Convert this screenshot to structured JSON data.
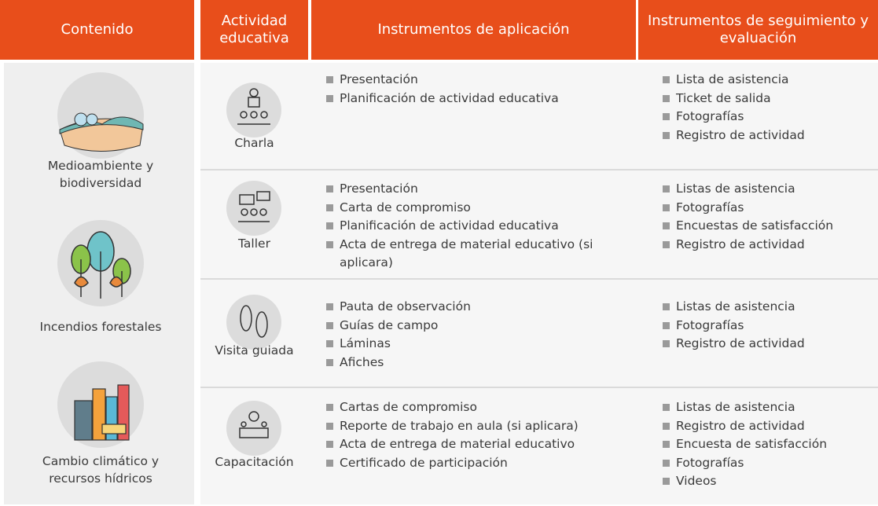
{
  "header": {
    "columns": [
      "Contenido",
      "Actividad educativa",
      "Instrumentos de aplicación",
      "Instrumentos de seguimiento y evaluación"
    ]
  },
  "contents": [
    {
      "label": "Medioambiente y biodiversidad"
    },
    {
      "label": "Incendios forestales"
    },
    {
      "label": "Cambio climático y recursos hídricos"
    }
  ],
  "activities": [
    {
      "name": "Charla",
      "application": [
        "Presentación",
        "Planificación de actividad educativa"
      ],
      "evaluation": [
        "Lista de asistencia",
        "Ticket de salida",
        "Fotografías",
        "Registro de actividad"
      ]
    },
    {
      "name": "Taller",
      "application": [
        "Presentación",
        "Carta de compromiso",
        "Planificación de actividad educativa",
        "Acta de entrega de material educativo (si aplicara)"
      ],
      "evaluation": [
        "Listas de asistencia",
        "Fotografías",
        "Encuestas de satisfacción",
        "Registro de actividad"
      ]
    },
    {
      "name": "Visita guiada",
      "application": [
        "Pauta de observación",
        "Guías de campo",
        "Láminas",
        "Afiches"
      ],
      "evaluation": [
        "Listas de asistencia",
        "Fotografías",
        "Registro de actividad"
      ]
    },
    {
      "name": "Capacitación",
      "application": [
        "Cartas de compromiso",
        "Reporte de trabajo en aula (si aplicara)",
        "Acta de entrega de material educativo",
        "Certificado de participación"
      ],
      "evaluation": [
        "Listas de asistencia",
        "Registro de actividad",
        "Encuesta de satisfacción",
        "Fotografías",
        "Videos"
      ]
    }
  ]
}
